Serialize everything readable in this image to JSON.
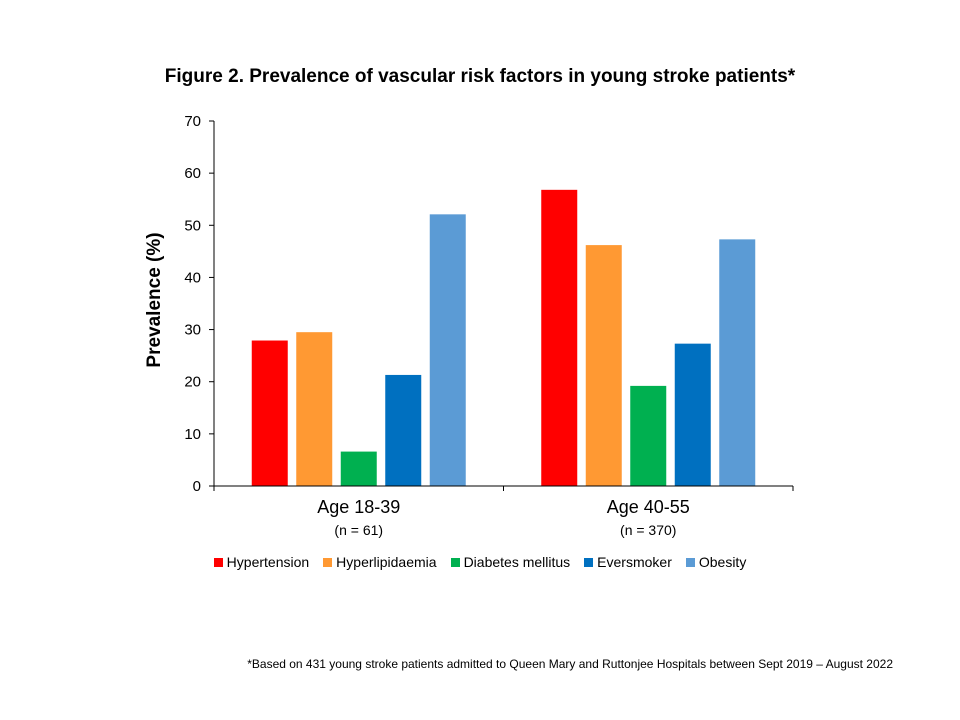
{
  "chart_data": {
    "type": "bar",
    "title": "Figure 2. Prevalence of vascular risk factors in young stroke patients*",
    "ylabel": "Prevalence (%)",
    "xlabel": "",
    "ylim": [
      0,
      70
    ],
    "yticks": [
      0,
      10,
      20,
      30,
      40,
      50,
      60,
      70
    ],
    "categories": [
      "Age 18-39",
      "Age 40-55"
    ],
    "category_sublabels": [
      "(n = 61)",
      "(n = 370)"
    ],
    "series": [
      {
        "name": "Hypertension",
        "color": "#ff0000",
        "values": [
          27.9,
          56.8
        ]
      },
      {
        "name": "Hyperlipidaemia",
        "color": "#ff9933",
        "values": [
          29.5,
          46.2
        ]
      },
      {
        "name": "Diabetes mellitus",
        "color": "#00b050",
        "values": [
          6.6,
          19.2
        ]
      },
      {
        "name": "Eversmoker",
        "color": "#0070c0",
        "values": [
          21.3,
          27.3
        ]
      },
      {
        "name": "Obesity",
        "color": "#5b9bd5",
        "values": [
          52.1,
          47.3
        ]
      }
    ],
    "legend_position": "bottom",
    "grid": false
  },
  "footnote": "*Based on 431 young stroke patients admitted to Queen Mary and Ruttonjee Hospitals between Sept 2019 – August 2022"
}
